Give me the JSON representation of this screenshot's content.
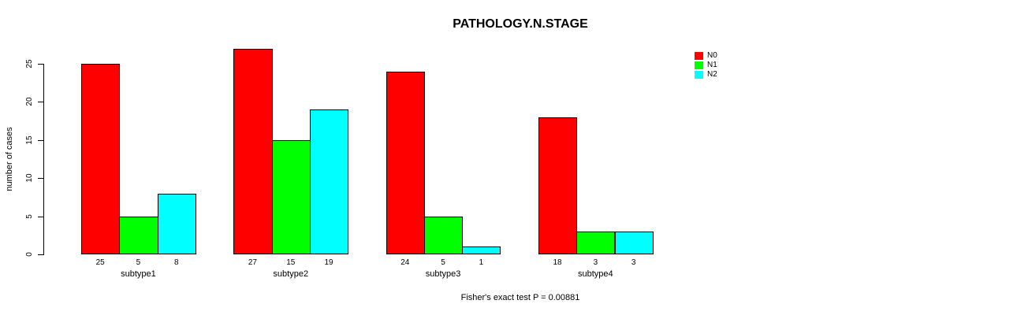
{
  "chart_data": {
    "type": "bar",
    "title": "PATHOLOGY.N.STAGE",
    "ylabel": "number of cases",
    "xlabel": "",
    "ylim": [
      0,
      27
    ],
    "yticks": [
      0,
      5,
      10,
      15,
      20,
      25
    ],
    "grid": false,
    "legend_position": "top-right",
    "bar_value_labels_shown": true,
    "categories": [
      "subtype1",
      "subtype2",
      "subtype3",
      "subtype4"
    ],
    "series": [
      {
        "name": "N0",
        "color": "#ff0000",
        "values": [
          25,
          27,
          24,
          18
        ]
      },
      {
        "name": "N1",
        "color": "#00ff00",
        "values": [
          5,
          15,
          5,
          3
        ]
      },
      {
        "name": "N2",
        "color": "#00ffff",
        "values": [
          8,
          19,
          1,
          3
        ]
      }
    ],
    "annotation": "Fisher's exact test P = 0.00881"
  },
  "colors": {
    "background": "#ffffff",
    "axis": "#000000",
    "text": "#000000",
    "series_N0": "#ff0000",
    "series_N1": "#00ff00",
    "series_N2": "#00ffff"
  }
}
